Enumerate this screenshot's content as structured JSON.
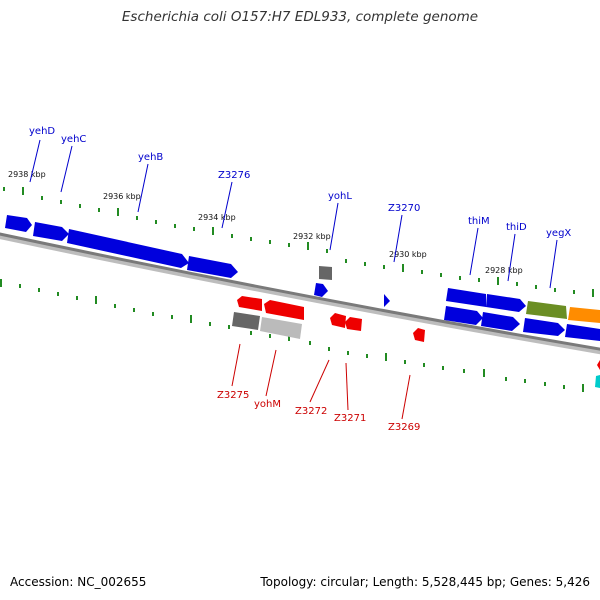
{
  "title": "Escherichia coli O157:H7 EDL933, complete genome",
  "footer": {
    "accession": "Accession: NC_002655",
    "stats": "Topology: circular; Length: 5,528,445 bp; Genes: 5,426"
  },
  "colors": {
    "forward_label": "#0000cc",
    "reverse_label": "#cc0000",
    "tick": "#228b22",
    "backbone": "#808080"
  },
  "kbp_labels": [
    "2938 kbp",
    "2936 kbp",
    "2934 kbp",
    "2932 kbp",
    "2930 kbp",
    "2928 kbp"
  ],
  "forward_genes": [
    "yehD",
    "yehC",
    "yehB",
    "Z3276",
    "yohL",
    "Z3270",
    "thiM",
    "thiD",
    "yegX"
  ],
  "reverse_genes": [
    "Z3275",
    "yohM",
    "Z3272",
    "Z3271",
    "Z3269"
  ]
}
